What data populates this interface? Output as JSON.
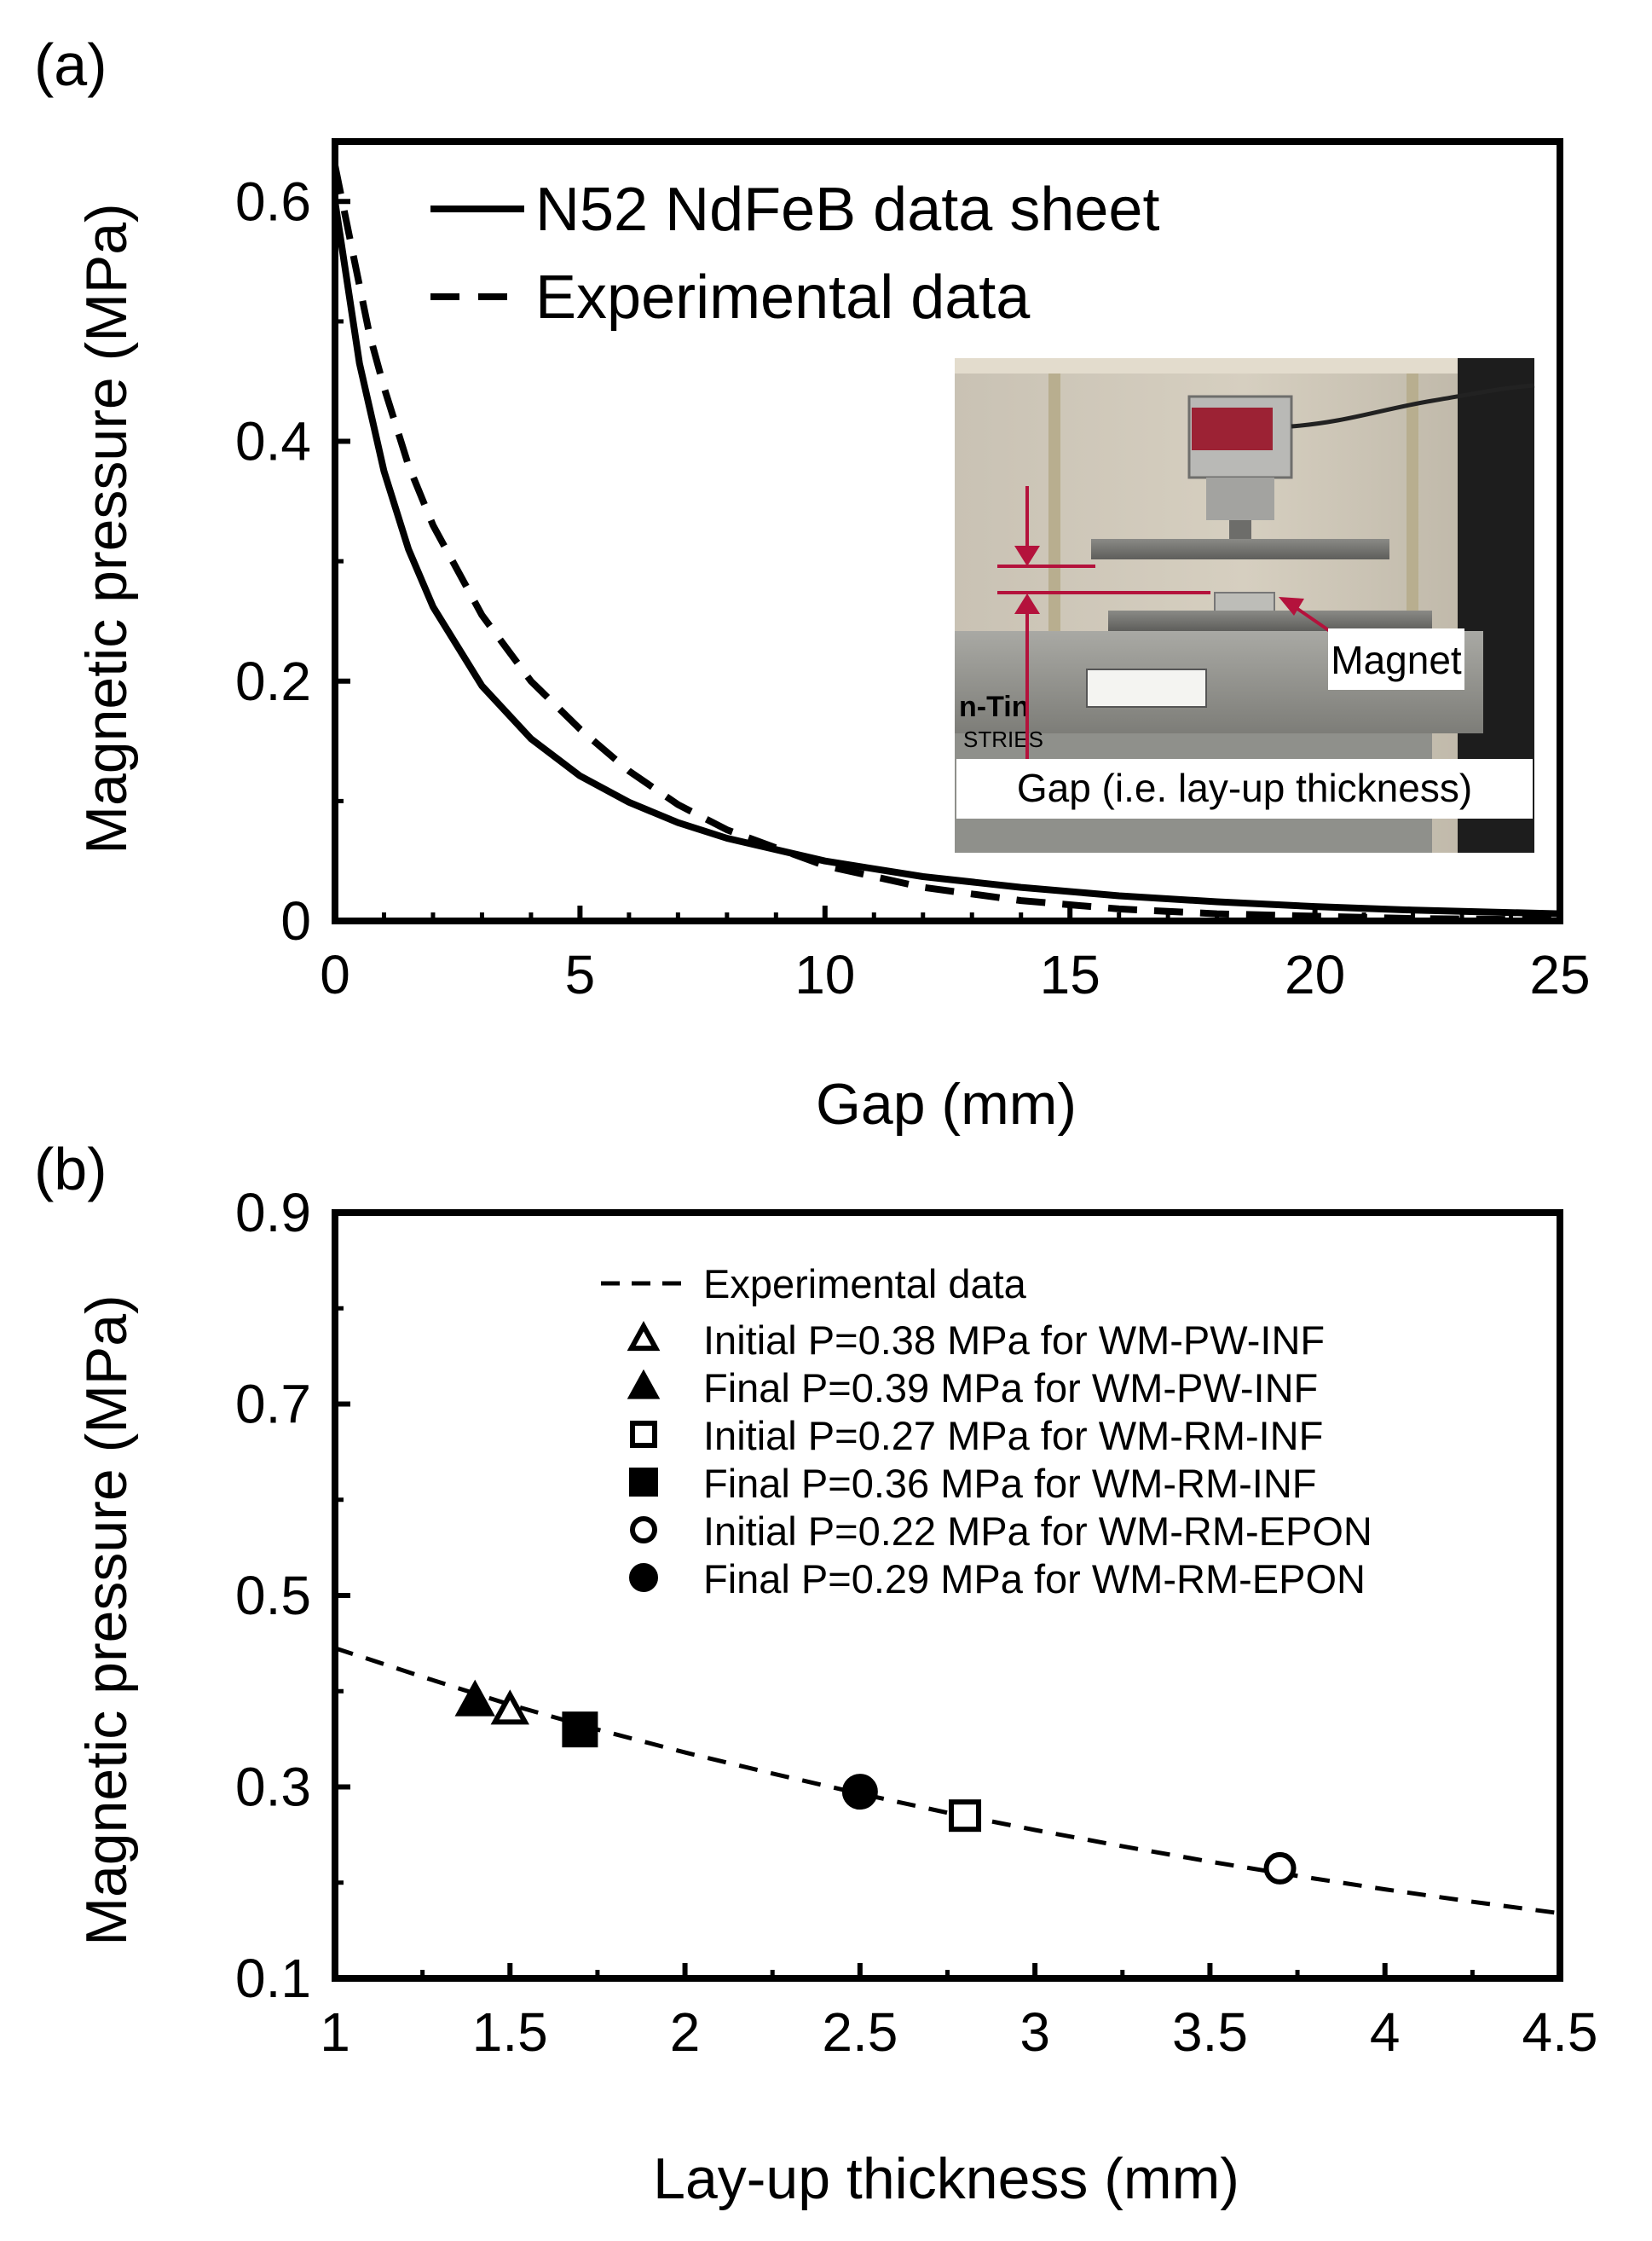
{
  "chart_data": [
    {
      "panel_label": "(a)",
      "type": "line",
      "xlabel": "Gap (mm)",
      "ylabel": "Magnetic pressure (MPa)",
      "xlim": [
        0,
        25
      ],
      "ylim": [
        0,
        0.65
      ],
      "x_ticks": [
        "0",
        "5",
        "10",
        "15",
        "20",
        "25"
      ],
      "y_ticks": [
        "0",
        "0.2",
        "0.4",
        "0.6"
      ],
      "legend_position": "top-left",
      "series": [
        {
          "name": "N52 NdFeB data sheet",
          "style": "solid",
          "x": [
            0,
            0.5,
            1,
            1.5,
            2,
            3,
            4,
            5,
            6,
            7,
            8,
            10,
            12,
            14,
            16,
            18,
            20,
            22,
            25
          ],
          "y": [
            0.6,
            0.465,
            0.375,
            0.31,
            0.262,
            0.196,
            0.152,
            0.121,
            0.099,
            0.082,
            0.069,
            0.05,
            0.037,
            0.028,
            0.021,
            0.016,
            0.012,
            0.009,
            0.006
          ]
        },
        {
          "name": "Experimental data",
          "style": "dashed",
          "x": [
            0,
            0.3,
            0.7,
            1,
            1.5,
            2,
            3,
            4,
            5,
            6,
            7,
            8,
            10,
            12,
            14,
            16,
            18,
            20,
            22,
            25
          ],
          "y": [
            0.63,
            0.57,
            0.49,
            0.445,
            0.38,
            0.33,
            0.255,
            0.2,
            0.16,
            0.125,
            0.097,
            0.076,
            0.046,
            0.028,
            0.017,
            0.01,
            0.006,
            0.004,
            0.002,
            0.001
          ]
        }
      ],
      "inset_photo": {
        "magnet_label": "Magnet",
        "gap_label": "Gap (i.e. lay-up thickness)"
      }
    },
    {
      "panel_label": "(b)",
      "type": "scatter",
      "xlabel": "Lay-up thickness (mm)",
      "ylabel": "Magnetic pressure (MPa)",
      "xlim": [
        1,
        4.5
      ],
      "ylim": [
        0.1,
        0.9
      ],
      "x_ticks": [
        "1",
        "1.5",
        "2",
        "2.5",
        "3",
        "3.5",
        "4",
        "4.5"
      ],
      "y_ticks": [
        "0.1",
        "0.3",
        "0.5",
        "0.7",
        "0.9"
      ],
      "legend_position": "top-right",
      "curve": {
        "name": "Experimental data",
        "style": "dashed",
        "x": [
          1,
          1.25,
          1.5,
          1.75,
          2,
          2.25,
          2.5,
          2.75,
          3,
          3.25,
          3.5,
          3.75,
          4,
          4.25,
          4.5
        ],
        "y": [
          0.445,
          0.415,
          0.386,
          0.36,
          0.336,
          0.314,
          0.293,
          0.273,
          0.255,
          0.238,
          0.222,
          0.207,
          0.193,
          0.18,
          0.168
        ]
      },
      "points": [
        {
          "label": "Initial P=0.38 MPa for WM-PW-INF",
          "marker": "triangle",
          "filled": false,
          "x": 1.5,
          "y": 0.38
        },
        {
          "label": "Final P=0.39 MPa for WM-PW-INF",
          "marker": "triangle",
          "filled": true,
          "x": 1.4,
          "y": 0.39
        },
        {
          "label": "Initial P=0.27 MPa for WM-RM-INF",
          "marker": "square",
          "filled": false,
          "x": 2.8,
          "y": 0.27
        },
        {
          "label": "Final P=0.36 MPa for WM-RM-INF",
          "marker": "square",
          "filled": true,
          "x": 1.7,
          "y": 0.36
        },
        {
          "label": "Initial P=0.22 MPa for WM-RM-EPON",
          "marker": "circle",
          "filled": false,
          "x": 3.7,
          "y": 0.215
        },
        {
          "label": "Final P=0.29 MPa for WM-RM-EPON",
          "marker": "circle",
          "filled": true,
          "x": 2.5,
          "y": 0.295
        }
      ]
    }
  ]
}
